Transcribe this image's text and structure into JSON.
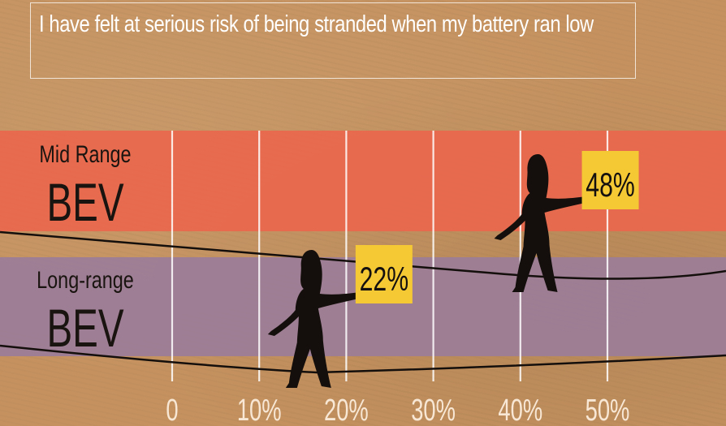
{
  "title": "I have felt at serious risk of being stranded when my battery ran low",
  "colors": {
    "background": "#c5925f",
    "mid_range_band": "#e9674e",
    "long_range_band": "#9b7d98",
    "value_label_bg": "#f5c933",
    "gridline": "#ffffff",
    "tick_label": "#f7e7d4",
    "silhouette": "#140f0c"
  },
  "icons": [
    "tightrope-walker-silhouette-icon",
    "tightrope-walker-silhouette-icon"
  ],
  "chart_data": {
    "type": "bar",
    "orientation": "horizontal",
    "title": "I have felt at serious risk of being stranded when my battery ran low",
    "categories": [
      {
        "line1": "Mid Range",
        "line2": "BEV"
      },
      {
        "line1": "Long-range",
        "line2": "BEV"
      }
    ],
    "values": [
      48,
      22
    ],
    "value_labels": [
      "48%",
      "22%"
    ],
    "xlim": [
      0,
      50
    ],
    "xticks": [
      0,
      10,
      20,
      30,
      40,
      50
    ],
    "xtick_labels": [
      "0",
      "10%",
      "20%",
      "30%",
      "40%",
      "50%"
    ],
    "grid": true,
    "xlabel": "",
    "ylabel": ""
  }
}
